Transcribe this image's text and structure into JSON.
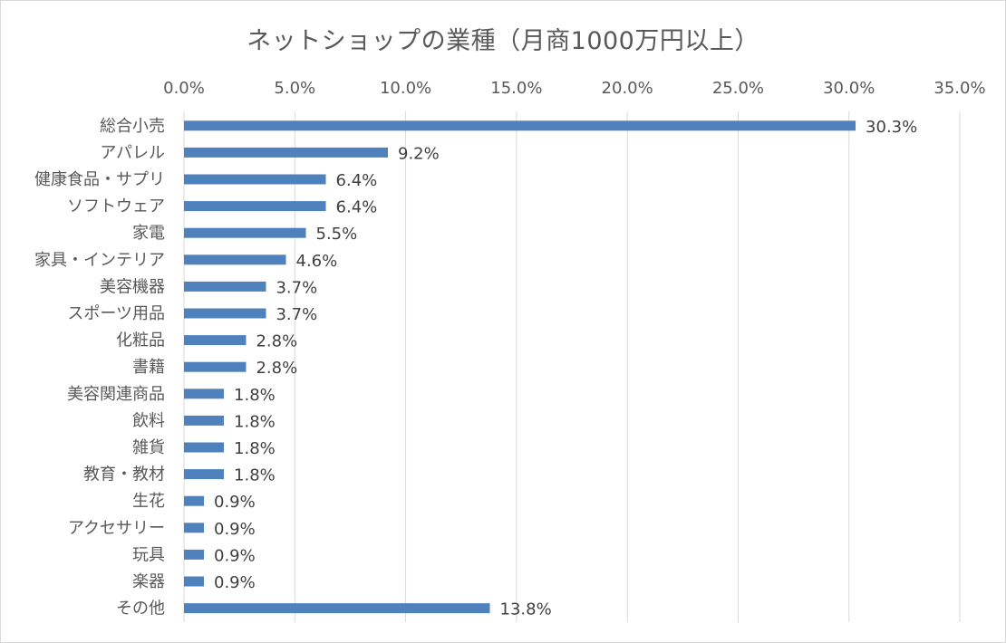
{
  "chart_data": {
    "type": "bar",
    "orientation": "horizontal",
    "title": "ネットショップの業種（月商1000万円以上）",
    "xlabel": "",
    "ylabel": "",
    "xlim": [
      0,
      35
    ],
    "x_axis_position": "top",
    "grid": true,
    "legend": "none",
    "bar_color": "#4f81bd",
    "tick_labels": [
      "0.0%",
      "5.0%",
      "10.0%",
      "15.0%",
      "20.0%",
      "25.0%",
      "30.0%",
      "35.0%"
    ],
    "categories": [
      "総合小売",
      "アパレル",
      "健康食品・サプリ",
      "ソフトウェア",
      "家電",
      "家具・インテリア",
      "美容機器",
      "スポーツ用品",
      "化粧品",
      "書籍",
      "美容関連商品",
      "飲料",
      "雑貨",
      "教育・教材",
      "生花",
      "アクセサリー",
      "玩具",
      "楽器",
      "その他"
    ],
    "values": [
      30.3,
      9.2,
      6.4,
      6.4,
      5.5,
      4.6,
      3.7,
      3.7,
      2.8,
      2.8,
      1.8,
      1.8,
      1.8,
      1.8,
      0.9,
      0.9,
      0.9,
      0.9,
      13.8
    ],
    "data_labels": [
      "30.3%",
      "9.2%",
      "6.4%",
      "6.4%",
      "5.5%",
      "4.6%",
      "3.7%",
      "3.7%",
      "2.8%",
      "2.8%",
      "1.8%",
      "1.8%",
      "1.8%",
      "1.8%",
      "0.9%",
      "0.9%",
      "0.9%",
      "0.9%",
      "13.8%"
    ]
  }
}
